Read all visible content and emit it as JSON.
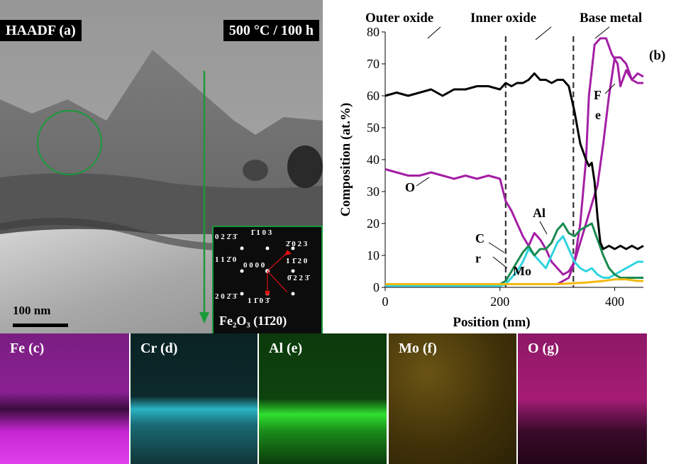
{
  "haadf": {
    "label": "HAADF (a)",
    "condition": "500 °C / 100 h",
    "scale_bar": "100 nm",
    "inset": {
      "caption": "Fe₂O₃ (11̄20)",
      "spots": [
        "0 2 2̄ 3̄",
        "1̄ 1 0 3",
        "2̄ 0 2 3",
        "1 1 2̄ 0",
        "0 0 0 0",
        "1 1̄ 2 0",
        "2 0 2̄ 3̄",
        "0̄ 2 2 3̄",
        "1 1̄ 0 3̄"
      ]
    }
  },
  "profile": {
    "panel_label": "(b)",
    "regions": [
      "Outer oxide",
      "Inner oxide",
      "Base metal"
    ],
    "xlabel": "Position (nm)",
    "ylabel": "Composition (at.%)",
    "curve_labels": {
      "fe": "F\ne",
      "o": "O",
      "cr": "C\nr",
      "al": "Al",
      "mo": "Mo"
    }
  },
  "maps": [
    {
      "label": "Fe (c)",
      "color": "#c426d0"
    },
    {
      "label": "Cr (d)",
      "color": "#35c8d6"
    },
    {
      "label": "Al (e)",
      "color": "#2fe02f"
    },
    {
      "label": "Mo (f)",
      "color": "#c9a42a"
    },
    {
      "label": "O (g)",
      "color": "#e0249a"
    }
  ],
  "chart_data": {
    "type": "line",
    "xlabel": "Position (nm)",
    "ylabel": "Composition (at.%)",
    "xlim": [
      0,
      450
    ],
    "ylim": [
      0,
      80
    ],
    "xticks": [
      0,
      200,
      400
    ],
    "yticks": [
      0,
      10,
      20,
      30,
      40,
      50,
      60,
      70,
      80
    ],
    "boundaries": [
      210,
      328
    ],
    "grid": false,
    "series": [
      {
        "name": "Fe",
        "color": "#a41ea4",
        "x": [
          0,
          20,
          40,
          60,
          80,
          100,
          120,
          140,
          160,
          180,
          200,
          210,
          240,
          260,
          280,
          300,
          320,
          330,
          340,
          350,
          355,
          365,
          375,
          385,
          395,
          405,
          410,
          420,
          430,
          440,
          450
        ],
        "y": [
          1,
          1,
          1,
          1,
          1,
          1,
          1,
          1,
          1,
          1,
          1,
          1,
          1,
          1,
          1,
          1,
          3,
          8,
          20,
          40,
          60,
          76,
          78,
          78,
          73,
          70,
          63,
          68,
          65,
          64,
          64
        ]
      },
      {
        "name": "O",
        "color": "#a41ea4",
        "x": [
          0,
          20,
          40,
          60,
          80,
          100,
          120,
          140,
          160,
          180,
          200,
          210,
          220,
          230,
          240,
          250,
          260,
          270,
          280,
          290,
          300,
          310,
          320,
          330,
          340,
          350,
          360,
          370,
          380,
          390,
          400,
          410,
          420,
          430,
          440,
          450
        ],
        "y": [
          37,
          36,
          35,
          35,
          36,
          35,
          34,
          35,
          34,
          35,
          34,
          27,
          24,
          20,
          16,
          13,
          17,
          15,
          12,
          8,
          6,
          4,
          5,
          8,
          14,
          20,
          26,
          32,
          45,
          60,
          72,
          72,
          70,
          65,
          67,
          66
        ]
      },
      {
        "name": "Cr",
        "color": "#2fd4e0",
        "x": [
          0,
          50,
          100,
          150,
          200,
          210,
          220,
          230,
          240,
          250,
          260,
          270,
          280,
          290,
          300,
          310,
          320,
          330,
          340,
          350,
          360,
          370,
          380,
          390,
          400,
          410,
          420,
          430,
          440,
          450
        ],
        "y": [
          0.5,
          0.5,
          0.5,
          0.5,
          0.5,
          1,
          3,
          5,
          8,
          12,
          10,
          8,
          6,
          10,
          14,
          16,
          12,
          8,
          6,
          5,
          6,
          4,
          3,
          3,
          4,
          5,
          6,
          7,
          8,
          8
        ]
      },
      {
        "name": "Al",
        "color": "#1a8a50",
        "x": [
          0,
          50,
          100,
          150,
          200,
          210,
          220,
          230,
          240,
          250,
          260,
          270,
          280,
          290,
          300,
          310,
          320,
          330,
          340,
          350,
          360,
          370,
          380,
          390,
          400,
          410,
          420,
          430,
          440,
          450
        ],
        "y": [
          1,
          1,
          1,
          1,
          1,
          2,
          5,
          8,
          11,
          13,
          10,
          12,
          12,
          14,
          18,
          20,
          17,
          16,
          18,
          19,
          20,
          15,
          10,
          6,
          4,
          3,
          3,
          3,
          3,
          3
        ]
      },
      {
        "name": "Mo",
        "color": "#f2b90f",
        "x": [
          0,
          50,
          100,
          150,
          200,
          250,
          300,
          350,
          380,
          400,
          420,
          440,
          450
        ],
        "y": [
          1,
          1,
          1,
          1,
          1,
          1,
          1,
          1.5,
          2,
          2.5,
          2.5,
          2,
          2
        ]
      },
      {
        "name": "",
        "color": "#000000",
        "x": [
          0,
          20,
          40,
          60,
          80,
          100,
          120,
          140,
          160,
          180,
          200,
          210,
          220,
          230,
          240,
          250,
          260,
          270,
          280,
          290,
          300,
          310,
          320,
          330,
          340,
          350,
          355,
          360,
          365,
          370,
          375,
          380,
          390,
          400,
          410,
          420,
          430,
          440,
          450
        ],
        "y": [
          60,
          61,
          60,
          61,
          62,
          60,
          62,
          62,
          63,
          63,
          62,
          64,
          63,
          64,
          64,
          65,
          67,
          65,
          65,
          64,
          65,
          65,
          63,
          55,
          45,
          40,
          38,
          39,
          33,
          22,
          14,
          12,
          13,
          12,
          13,
          12,
          13,
          12,
          13
        ]
      }
    ]
  }
}
